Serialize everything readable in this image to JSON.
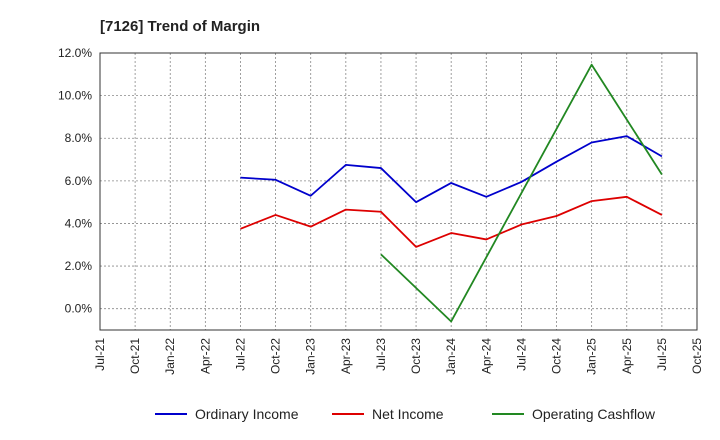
{
  "chart_data": {
    "type": "line",
    "title": "[7126]  Trend of Margin",
    "xlabel": "",
    "ylabel": "",
    "ylim": [
      -1.0,
      12.0
    ],
    "yticks": [
      0.0,
      2.0,
      4.0,
      6.0,
      8.0,
      10.0,
      12.0
    ],
    "ytick_labels": [
      "0.0%",
      "2.0%",
      "4.0%",
      "6.0%",
      "8.0%",
      "10.0%",
      "12.0%"
    ],
    "categories": [
      "Jul-21",
      "Oct-21",
      "Jan-22",
      "Apr-22",
      "Jul-22",
      "Oct-22",
      "Jan-23",
      "Apr-23",
      "Jul-23",
      "Oct-23",
      "Jan-24",
      "Apr-24",
      "Jul-24",
      "Oct-24",
      "Jan-25",
      "Apr-25",
      "Jul-25",
      "Oct-25"
    ],
    "grid": true,
    "legend_position": "bottom",
    "series": [
      {
        "name": "Ordinary Income",
        "color": "#0000cc",
        "values": [
          null,
          null,
          null,
          null,
          6.15,
          6.05,
          5.3,
          6.75,
          6.6,
          5.0,
          5.9,
          5.25,
          5.95,
          6.9,
          7.8,
          8.1,
          7.15,
          null
        ]
      },
      {
        "name": "Net Income",
        "color": "#dd0000",
        "values": [
          null,
          null,
          null,
          null,
          3.75,
          4.4,
          3.85,
          4.65,
          4.55,
          2.9,
          3.55,
          3.25,
          3.95,
          4.35,
          5.05,
          5.25,
          4.4,
          null
        ]
      },
      {
        "name": "Operating Cashflow",
        "color": "#228822",
        "values": [
          null,
          null,
          null,
          null,
          null,
          null,
          null,
          null,
          2.55,
          null,
          -0.6,
          null,
          null,
          null,
          11.45,
          null,
          6.3,
          null
        ]
      }
    ]
  }
}
